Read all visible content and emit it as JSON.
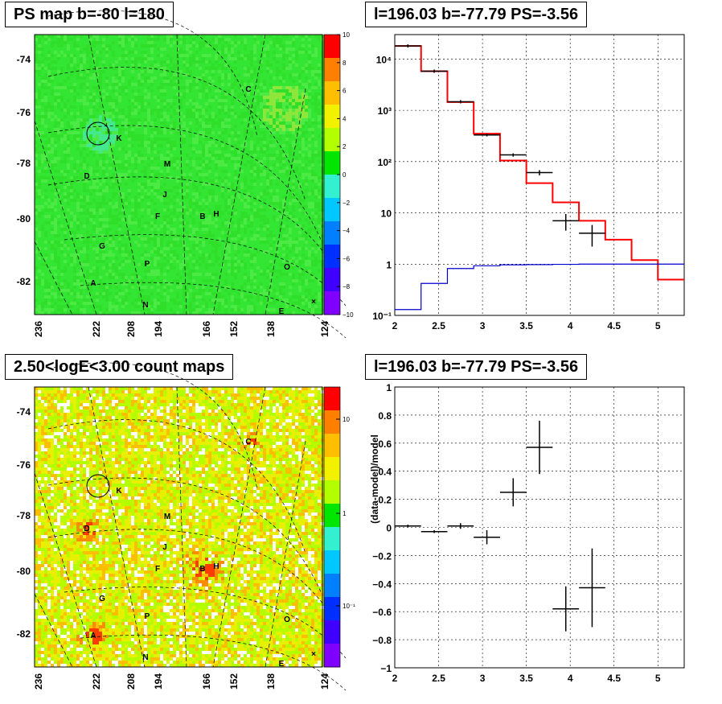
{
  "titles": {
    "ps_map": "PS map b=-80 l=180",
    "spectrum": "l=196.03 b=-77.79 PS=-3.56",
    "count_map": "2.50<logE<3.00 count maps",
    "residual": "l=196.03 b=-77.79 PS=-3.56"
  },
  "map_axes": {
    "lon_ticks": [
      "236",
      "222",
      "208",
      "194",
      "166",
      "152",
      "138",
      "124"
    ],
    "lat_ticks": [
      "-74",
      "-76",
      "-78",
      "-80",
      "-82"
    ],
    "lat_values": [
      -74,
      -76,
      -78,
      -80,
      -82
    ]
  },
  "sources": [
    "K",
    "D",
    "M",
    "J",
    "F",
    "B",
    "H",
    "G",
    "P",
    "A",
    "N",
    "E",
    "O",
    "C"
  ],
  "colorbar_ps": {
    "labels": [
      "10",
      "8",
      "6",
      "4",
      "2",
      "0",
      "−2",
      "−4",
      "−6",
      "−8",
      "−10"
    ],
    "colors": [
      "#ff0000",
      "#ff7f00",
      "#ffbf00",
      "#f2f200",
      "#b3ff00",
      "#00e600",
      "#33f0d0",
      "#00c8ff",
      "#0080ff",
      "#0030ff",
      "#4000ff",
      "#7f00ff"
    ]
  },
  "colorbar_count": {
    "labels": [
      "10",
      "1",
      "10⁻¹"
    ],
    "colors": [
      "#ff0000",
      "#ff7f00",
      "#ffbf00",
      "#f2f200",
      "#b3ff00",
      "#00e600",
      "#33f0d0",
      "#00c8ff",
      "#0080ff",
      "#0030ff",
      "#4000ff",
      "#7f00ff"
    ]
  },
  "chart_data": [
    {
      "type": "line",
      "title": "l=196.03 b=-77.79 PS=-3.56",
      "xlabel": "",
      "ylabel": "",
      "xlim": [
        2,
        5.3
      ],
      "ylim": [
        0.1,
        30000
      ],
      "yscale": "log",
      "x_ticks": [
        "2",
        "2.5",
        "3",
        "3.5",
        "4",
        "4.5",
        "5"
      ],
      "y_ticks": [
        "10⁻¹",
        "1",
        "10",
        "10²",
        "10³",
        "10⁴"
      ],
      "grid": true,
      "series": [
        {
          "color": "#ff0000",
          "bins": [
            [
              2.0,
              2.3,
              18000
            ],
            [
              2.3,
              2.6,
              5800
            ],
            [
              2.6,
              2.9,
              1450
            ],
            [
              2.9,
              3.2,
              350
            ],
            [
              3.2,
              3.5,
              105
            ],
            [
              3.5,
              3.8,
              38
            ],
            [
              3.8,
              4.1,
              16
            ],
            [
              4.1,
              4.4,
              7
            ],
            [
              4.4,
              4.7,
              3
            ],
            [
              4.7,
              5.0,
              1.2
            ],
            [
              5.0,
              5.3,
              0.5
            ]
          ]
        },
        {
          "color": "#0000cc",
          "bins": [
            [
              2.0,
              2.3,
              0.13
            ],
            [
              2.3,
              2.6,
              0.42
            ],
            [
              2.6,
              2.9,
              0.82
            ],
            [
              2.9,
              3.2,
              0.93
            ],
            [
              3.2,
              3.5,
              0.97
            ],
            [
              3.5,
              3.8,
              0.98
            ],
            [
              3.8,
              4.1,
              0.99
            ],
            [
              4.1,
              4.4,
              1.0
            ],
            [
              4.4,
              4.7,
              1.0
            ],
            [
              4.7,
              5.0,
              1.0
            ],
            [
              5.0,
              5.3,
              1.0
            ]
          ]
        },
        {
          "color": "#000000",
          "points": [
            [
              2.15,
              18000,
              0.15,
              0
            ],
            [
              2.45,
              5800,
              0.15,
              0
            ],
            [
              2.75,
              1470,
              0.15,
              0
            ],
            [
              3.05,
              330,
              0.15,
              20
            ],
            [
              3.35,
              135,
              0.15,
              10
            ],
            [
              3.65,
              61,
              0.15,
              7
            ],
            [
              3.95,
              7,
              0.15,
              2.5
            ],
            [
              4.25,
              4,
              0.15,
              1.8
            ]
          ]
        }
      ]
    },
    {
      "type": "scatter",
      "title": "l=196.03 b=-77.79 PS=-3.56",
      "xlabel": "",
      "ylabel": "(data-model)/model",
      "xlim": [
        2,
        5.3
      ],
      "ylim": [
        -1,
        1
      ],
      "x_ticks": [
        "2",
        "2.5",
        "3",
        "3.5",
        "4",
        "4.5",
        "5"
      ],
      "y_ticks": [
        "−1",
        "−0.8",
        "−0.6",
        "−0.4",
        "−0.2",
        "0",
        "0.2",
        "0.4",
        "0.6",
        "0.8",
        "1"
      ],
      "grid": true,
      "points": [
        [
          2.15,
          0.01,
          0.15,
          0.01
        ],
        [
          2.45,
          -0.03,
          0.15,
          0.01
        ],
        [
          2.75,
          0.01,
          0.15,
          0.02
        ],
        [
          3.05,
          -0.07,
          0.15,
          0.05
        ],
        [
          3.35,
          0.25,
          0.15,
          0.1
        ],
        [
          3.65,
          0.57,
          0.15,
          0.19
        ],
        [
          3.95,
          -0.58,
          0.15,
          0.16
        ],
        [
          4.25,
          -0.43,
          0.15,
          0.28
        ]
      ]
    }
  ]
}
